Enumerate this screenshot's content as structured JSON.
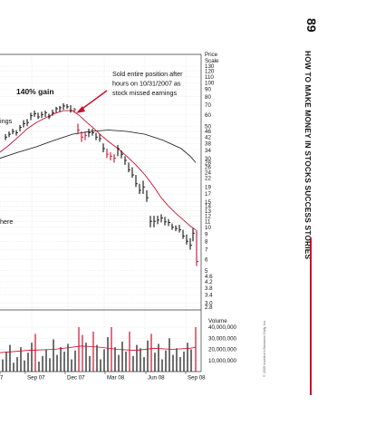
{
  "page": {
    "number": "89",
    "running_title": "HOW TO MAKE MONEY IN STOCKS SUCCESS STORIES",
    "accent_color": "#c8102e"
  },
  "chart_data": {
    "type": "stock-chart",
    "annotations": {
      "gain": "140% gain",
      "sold": [
        "Sold entire position after",
        "hours on 10/31/2007 as",
        "stock missed earnings"
      ],
      "left_fragments": [
        "ings",
        "here"
      ]
    },
    "price_axis": {
      "title": [
        "Price",
        "Scale"
      ],
      "scale": "log",
      "ticks": [
        "130",
        "120",
        "110",
        "100",
        "90",
        "80",
        "70",
        "60",
        "50",
        "46",
        "42",
        "38",
        "34",
        "30",
        "28",
        "26",
        "24",
        "22",
        "19",
        "17",
        "15",
        "14",
        "13",
        "12",
        "11",
        "10",
        "9",
        "8",
        "7",
        "6",
        "5",
        "4.6",
        "4.2",
        "3.8",
        "3.4",
        "3.0",
        "2.8"
      ]
    },
    "volume_axis": {
      "title": "Volume",
      "ticks": [
        "40,000,000",
        "30,000,000",
        "20,000,000",
        "10,000,000"
      ]
    },
    "x_axis": {
      "ticks": [
        "7",
        "Sep 07",
        "Dec 07",
        "Mar 08",
        "Jun 08",
        "Sep 08"
      ]
    },
    "copyright": "© 2009 Investor's Business Daily, Inc.",
    "price_bars": [
      {
        "x": 6,
        "low": 40,
        "high": 44,
        "close": 42
      },
      {
        "x": 10,
        "low": 42,
        "high": 46,
        "close": 44
      },
      {
        "x": 14,
        "low": 44,
        "high": 48,
        "close": 46
      },
      {
        "x": 18,
        "low": 43,
        "high": 47,
        "close": 45
      },
      {
        "x": 22,
        "low": 46,
        "high": 51,
        "close": 49
      },
      {
        "x": 26,
        "low": 49,
        "high": 55,
        "close": 52
      },
      {
        "x": 30,
        "low": 50,
        "high": 56,
        "close": 53
      },
      {
        "x": 34,
        "low": 55,
        "high": 62,
        "close": 59
      },
      {
        "x": 38,
        "low": 58,
        "high": 64,
        "close": 61
      },
      {
        "x": 42,
        "low": 56,
        "high": 62,
        "close": 58
      },
      {
        "x": 46,
        "low": 57,
        "high": 63,
        "close": 60
      },
      {
        "x": 50,
        "low": 58,
        "high": 64,
        "close": 62
      },
      {
        "x": 54,
        "low": 56,
        "high": 61,
        "close": 58
      },
      {
        "x": 58,
        "low": 59,
        "high": 65,
        "close": 62
      },
      {
        "x": 62,
        "low": 62,
        "high": 68,
        "close": 66
      },
      {
        "x": 66,
        "low": 63,
        "high": 69,
        "close": 67
      },
      {
        "x": 70,
        "low": 65,
        "high": 72,
        "close": 69
      },
      {
        "x": 74,
        "low": 66,
        "high": 71,
        "close": 68
      },
      {
        "x": 78,
        "low": 62,
        "high": 70,
        "close": 64
      },
      {
        "x": 82,
        "low": 62,
        "high": 67,
        "close": 65
      },
      {
        "x": 86,
        "low": 44,
        "high": 52,
        "close": 47
      },
      {
        "x": 90,
        "low": 39,
        "high": 46,
        "close": 42
      },
      {
        "x": 94,
        "low": 40,
        "high": 46,
        "close": 43
      },
      {
        "x": 98,
        "low": 42,
        "high": 48,
        "close": 45
      },
      {
        "x": 102,
        "low": 43,
        "high": 48,
        "close": 45
      },
      {
        "x": 106,
        "low": 40,
        "high": 45,
        "close": 42
      },
      {
        "x": 110,
        "low": 39,
        "high": 44,
        "close": 41
      },
      {
        "x": 114,
        "low": 33,
        "high": 38,
        "close": 35
      },
      {
        "x": 118,
        "low": 30,
        "high": 35,
        "close": 32
      },
      {
        "x": 122,
        "low": 29,
        "high": 33,
        "close": 31
      },
      {
        "x": 126,
        "low": 28,
        "high": 32,
        "close": 30
      },
      {
        "x": 130,
        "low": 31,
        "high": 37,
        "close": 35
      },
      {
        "x": 134,
        "low": 30,
        "high": 34,
        "close": 32
      },
      {
        "x": 138,
        "low": 27,
        "high": 31,
        "close": 29
      },
      {
        "x": 142,
        "low": 24,
        "high": 28,
        "close": 25
      },
      {
        "x": 146,
        "low": 22,
        "high": 26,
        "close": 23
      },
      {
        "x": 150,
        "low": 19,
        "high": 23,
        "close": 20
      },
      {
        "x": 154,
        "low": 17,
        "high": 20,
        "close": 18
      },
      {
        "x": 158,
        "low": 17,
        "high": 21,
        "close": 19
      },
      {
        "x": 162,
        "low": 15,
        "high": 18,
        "close": 16
      },
      {
        "x": 166,
        "low": 10,
        "high": 12,
        "close": 11
      },
      {
        "x": 170,
        "low": 10,
        "high": 12,
        "close": 11
      },
      {
        "x": 174,
        "low": 10.5,
        "high": 12,
        "close": 11.2
      },
      {
        "x": 178,
        "low": 10.8,
        "high": 12.3,
        "close": 11.6
      },
      {
        "x": 182,
        "low": 10.3,
        "high": 11.8,
        "close": 10.9
      },
      {
        "x": 186,
        "low": 10.2,
        "high": 11.4,
        "close": 10.8
      },
      {
        "x": 190,
        "low": 9.6,
        "high": 10.6,
        "close": 10
      },
      {
        "x": 194,
        "low": 9.4,
        "high": 10.3,
        "close": 9.8
      },
      {
        "x": 198,
        "low": 9.2,
        "high": 10.4,
        "close": 9.6
      },
      {
        "x": 202,
        "low": 8.3,
        "high": 9.6,
        "close": 8.7
      },
      {
        "x": 206,
        "low": 7.6,
        "high": 8.9,
        "close": 8
      },
      {
        "x": 210,
        "low": 7.0,
        "high": 8.4,
        "close": 7.5
      },
      {
        "x": 213,
        "low": 8.0,
        "high": 9.8,
        "close": 9.1
      }
    ],
    "red_bars": [
      {
        "x": 217,
        "low": 5.4,
        "high": 9.6,
        "close": 5.8
      }
    ],
    "moving_avg_red": [
      [
        0,
        33
      ],
      [
        10,
        37
      ],
      [
        20,
        42
      ],
      [
        30,
        48
      ],
      [
        40,
        53
      ],
      [
        50,
        57
      ],
      [
        60,
        61
      ],
      [
        70,
        64
      ],
      [
        80,
        64
      ],
      [
        88,
        59
      ],
      [
        96,
        53
      ],
      [
        104,
        48
      ],
      [
        112,
        43
      ],
      [
        120,
        39
      ],
      [
        130,
        35
      ],
      [
        140,
        31
      ],
      [
        150,
        27
      ],
      [
        160,
        23
      ],
      [
        170,
        19
      ],
      [
        178,
        16
      ],
      [
        186,
        14
      ],
      [
        194,
        12.5
      ],
      [
        202,
        11.3
      ],
      [
        210,
        10.2
      ],
      [
        216,
        9.6
      ]
    ],
    "moving_avg_black": [
      [
        0,
        30
      ],
      [
        20,
        33
      ],
      [
        40,
        36
      ],
      [
        60,
        40
      ],
      [
        80,
        44
      ],
      [
        100,
        46
      ],
      [
        120,
        47
      ],
      [
        140,
        46
      ],
      [
        160,
        44
      ],
      [
        180,
        40
      ],
      [
        200,
        35
      ],
      [
        210,
        31
      ],
      [
        216,
        28
      ]
    ],
    "volume_bars": [
      {
        "x": 3,
        "v": 11
      },
      {
        "x": 7,
        "v": 18
      },
      {
        "x": 11,
        "v": 24
      },
      {
        "x": 15,
        "v": 8
      },
      {
        "x": 19,
        "v": 13
      },
      {
        "x": 23,
        "v": 22
      },
      {
        "x": 27,
        "v": 10
      },
      {
        "x": 31,
        "v": 17
      },
      {
        "x": 35,
        "v": 26
      },
      {
        "x": 39,
        "v": 34
      },
      {
        "x": 43,
        "v": 9
      },
      {
        "x": 47,
        "v": 14
      },
      {
        "x": 51,
        "v": 20
      },
      {
        "x": 55,
        "v": 12
      },
      {
        "x": 59,
        "v": 29
      },
      {
        "x": 63,
        "v": 15
      },
      {
        "x": 67,
        "v": 22
      },
      {
        "x": 71,
        "v": 18
      },
      {
        "x": 75,
        "v": 25
      },
      {
        "x": 79,
        "v": 11
      },
      {
        "x": 83,
        "v": 19
      },
      {
        "x": 87,
        "v": 40
      },
      {
        "x": 91,
        "v": 33
      },
      {
        "x": 95,
        "v": 26
      },
      {
        "x": 99,
        "v": 14
      },
      {
        "x": 103,
        "v": 36
      },
      {
        "x": 107,
        "v": 24
      },
      {
        "x": 111,
        "v": 11
      },
      {
        "x": 115,
        "v": 20
      },
      {
        "x": 119,
        "v": 31
      },
      {
        "x": 123,
        "v": 40
      },
      {
        "x": 127,
        "v": 22
      },
      {
        "x": 131,
        "v": 15
      },
      {
        "x": 135,
        "v": 27
      },
      {
        "x": 139,
        "v": 18
      },
      {
        "x": 143,
        "v": 36
      },
      {
        "x": 147,
        "v": 14
      },
      {
        "x": 151,
        "v": 24
      },
      {
        "x": 155,
        "v": 21
      },
      {
        "x": 159,
        "v": 13
      },
      {
        "x": 163,
        "v": 28
      },
      {
        "x": 167,
        "v": 34
      },
      {
        "x": 171,
        "v": 17
      },
      {
        "x": 175,
        "v": 25
      },
      {
        "x": 179,
        "v": 11
      },
      {
        "x": 183,
        "v": 19
      },
      {
        "x": 187,
        "v": 30
      },
      {
        "x": 191,
        "v": 15
      },
      {
        "x": 195,
        "v": 21
      },
      {
        "x": 199,
        "v": 13
      },
      {
        "x": 203,
        "v": 18
      },
      {
        "x": 207,
        "v": 26
      },
      {
        "x": 211,
        "v": 20
      },
      {
        "x": 216,
        "v": 40
      }
    ],
    "volume_avg": [
      [
        0,
        17
      ],
      [
        30,
        19
      ],
      [
        60,
        20
      ],
      [
        90,
        23
      ],
      [
        110,
        22
      ],
      [
        130,
        20
      ],
      [
        150,
        19
      ],
      [
        170,
        21
      ],
      [
        190,
        20
      ],
      [
        210,
        21
      ],
      [
        216,
        22
      ]
    ]
  }
}
